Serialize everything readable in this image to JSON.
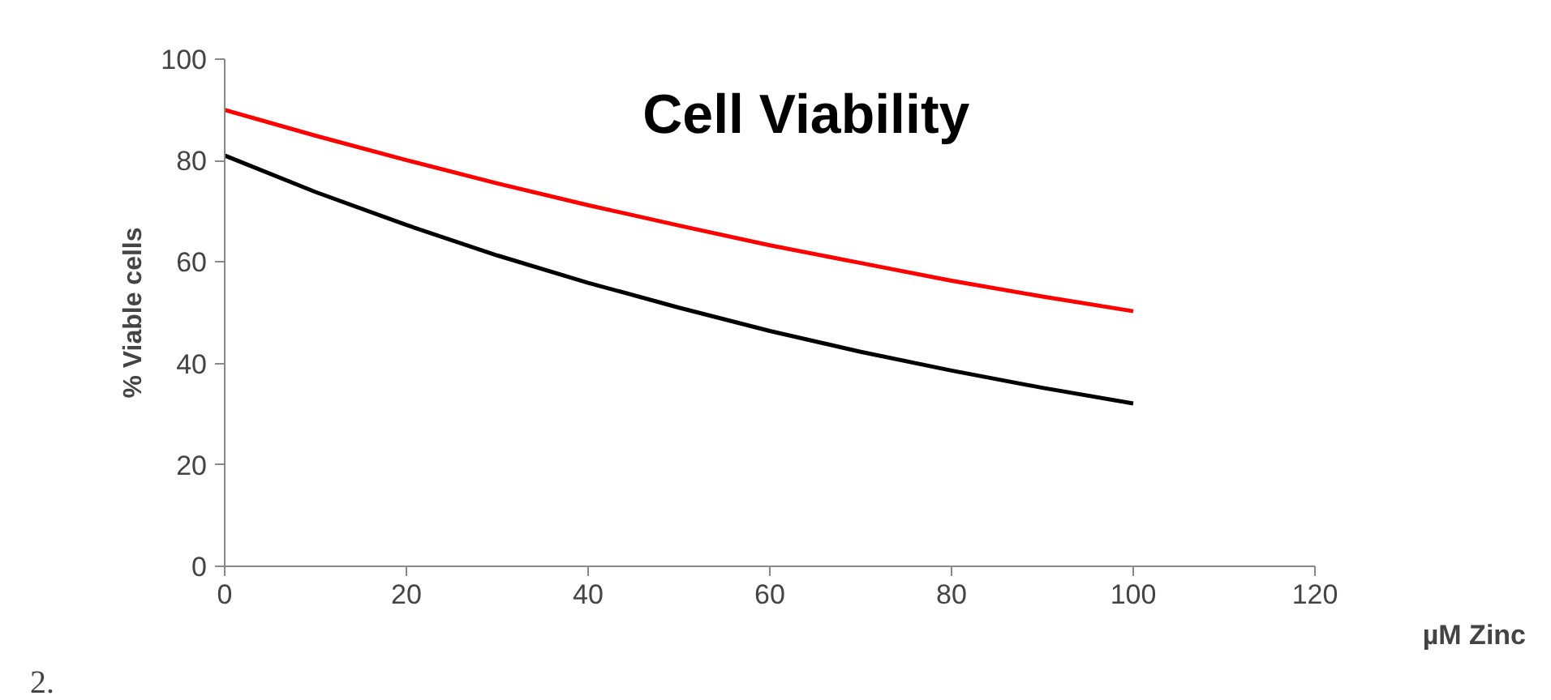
{
  "chart_data": {
    "type": "line",
    "title": "Cell Viability",
    "xlabel": "µM Zinc",
    "ylabel": "% Viable cells",
    "x": [
      0,
      10,
      20,
      30,
      40,
      50,
      60,
      70,
      80,
      90,
      100
    ],
    "series": [
      {
        "color": "#ff0000",
        "values": [
          90,
          84.9,
          80.1,
          75.5,
          71.2,
          67.2,
          63.3,
          59.8,
          56.3,
          53.2,
          50.3
        ]
      },
      {
        "color": "#000000",
        "values": [
          81,
          73.8,
          67.3,
          61.3,
          55.9,
          51,
          46.4,
          42.3,
          38.6,
          35.2,
          32.1
        ]
      }
    ],
    "xlim": [
      0,
      120
    ],
    "ylim": [
      0,
      100
    ],
    "xticks": [
      0,
      20,
      40,
      60,
      80,
      100,
      120
    ],
    "yticks": [
      0,
      20,
      40,
      60,
      80,
      100
    ],
    "grid": false,
    "annotations": [
      "2."
    ]
  }
}
